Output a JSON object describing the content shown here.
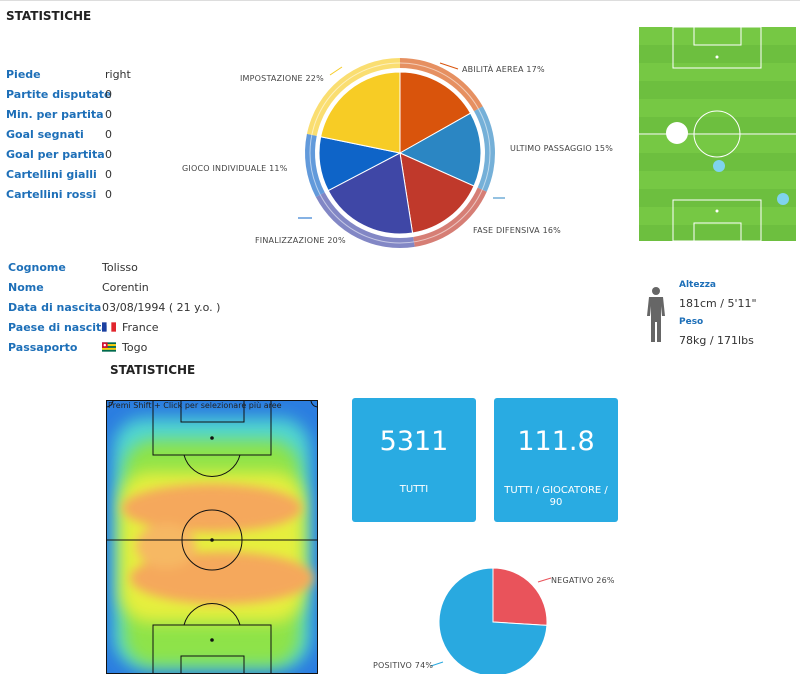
{
  "header": {
    "title": "STATISTICHE"
  },
  "stats": [
    {
      "label": "Piede",
      "value": "right"
    },
    {
      "label": "Partite disputate",
      "value": "0"
    },
    {
      "label": "Min. per partita",
      "value": "0"
    },
    {
      "label": "Goal segnati",
      "value": "0"
    },
    {
      "label": "Goal per partita",
      "value": "0"
    },
    {
      "label": "Cartellini gialli",
      "value": "0"
    },
    {
      "label": "Cartellini rossi",
      "value": "0"
    }
  ],
  "skills_pie": {
    "slices": [
      {
        "label": "ABILITÀ AEREA 17%",
        "percent": 17,
        "color": "#d9540c"
      },
      {
        "label": "ULTIMO PASSAGGIO 15%",
        "percent": 15,
        "color": "#2b86c3"
      },
      {
        "label": "FASE DIFENSIVA 16%",
        "percent": 16,
        "color": "#c0392b"
      },
      {
        "label": "FINALIZZAZIONE 20%",
        "percent": 20,
        "color": "#3f47a6"
      },
      {
        "label": "GIOCO INDIVIDUALE 11%",
        "percent": 11,
        "color": "#0e64c8"
      },
      {
        "label": "IMPOSTAZIONE 22%",
        "percent": 22,
        "color": "#f7cc25"
      }
    ]
  },
  "bio": {
    "rows": [
      {
        "label": "Cognome",
        "value": "Tolisso"
      },
      {
        "label": "Nome",
        "value": "Corentin"
      },
      {
        "label": "Data di nascita",
        "value": "03/08/1994 ( 21 y.o. )"
      },
      {
        "label": "Paese di nascita",
        "value": "France",
        "flag": "france-flag"
      },
      {
        "label": "Passaporto",
        "value": "Togo",
        "flag": "togo-flag"
      }
    ]
  },
  "physical": {
    "height_label": "Altezza",
    "height_value": "181cm / 5'11\"",
    "weight_label": "Peso",
    "weight_value": "78kg / 171lbs",
    "icon": "person-silhouette-icon"
  },
  "heatmap": {
    "title": "STATISTICHE",
    "hint": "Premi Shift + Click per selezionare più aree"
  },
  "cards": [
    {
      "value": "5311",
      "label": "TUTTI"
    },
    {
      "value": "111.8",
      "label": "TUTTI / GIOCATORE / 90"
    }
  ],
  "outcome_pie": {
    "slices": [
      {
        "label": "NEGATIVO 26%",
        "percent": 26,
        "color": "#e9535b"
      },
      {
        "label": "POSITIVO 74%",
        "percent": 74,
        "color": "#29a9e0"
      }
    ]
  },
  "colors": {
    "accent": "#29abe2",
    "label": "#1d6fb8",
    "pitch": "#6dbf3f"
  }
}
